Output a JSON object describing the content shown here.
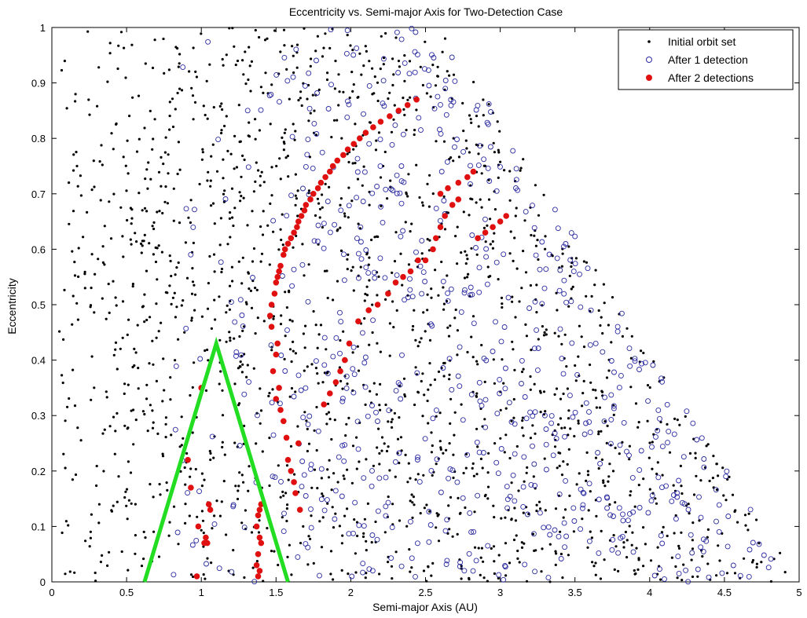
{
  "chart_data": {
    "type": "scatter",
    "title": "Eccentricity vs. Semi-major Axis for Two-Detection Case",
    "xlabel": "Semi-major Axis (AU)",
    "ylabel": "Eccentricity",
    "xlim": [
      0,
      5
    ],
    "ylim": [
      0,
      1
    ],
    "xticks": [
      "0",
      "0.5",
      "1",
      "1.5",
      "2",
      "2.5",
      "3",
      "3.5",
      "4",
      "4.5",
      "5"
    ],
    "yticks": [
      "0",
      "0.1",
      "0.2",
      "0.3",
      "0.4",
      "0.5",
      "0.6",
      "0.7",
      "0.8",
      "0.9",
      "1"
    ],
    "grid": false,
    "legend_position": "top-right",
    "colors": {
      "initial": "#000000",
      "after1": "#2a2aa0",
      "after2": "#e01010",
      "triangle": "#22dd22"
    },
    "series": [
      {
        "name": "Initial orbit set",
        "marker": "dot",
        "note": "dense random cloud of black dots below the boundary line e = 1 - (a - 2.6)/2.4 for a > 2.6",
        "count": 1900
      },
      {
        "name": "After 1 detection",
        "marker": "open-circle",
        "note": "blue open circles concentrated for a between 0.8 and 5",
        "count": 750
      },
      {
        "name": "After 2 detections",
        "marker": "filled-circle",
        "x": [
          0.97,
          1.0,
          0.91,
          0.93,
          0.98,
          1.02,
          1.05,
          1.06,
          1.04,
          1.03,
          1.38,
          1.39,
          1.37,
          1.38,
          1.4,
          1.39,
          1.37,
          1.38,
          1.39,
          1.4,
          1.5,
          1.52,
          1.48,
          1.53,
          1.55,
          1.57,
          1.5,
          1.51,
          1.47,
          1.46,
          1.47,
          1.49,
          1.5,
          1.51,
          1.52,
          1.53,
          1.55,
          1.56,
          1.58,
          1.6,
          1.62,
          1.64,
          1.65,
          1.67,
          1.69,
          1.7,
          1.73,
          1.75,
          1.78,
          1.8,
          1.83,
          1.86,
          1.88,
          1.91,
          1.95,
          1.98,
          2.02,
          2.06,
          2.1,
          2.15,
          2.2,
          2.26,
          2.32,
          2.38,
          2.44,
          1.82,
          1.86,
          1.9,
          1.93,
          1.96,
          1.99,
          2.05,
          2.12,
          2.18,
          2.25,
          2.3,
          2.35,
          2.4,
          2.45,
          2.6,
          2.65,
          2.72,
          2.78,
          2.82,
          2.85,
          2.9,
          2.95,
          3.0,
          3.04,
          2.5,
          2.55,
          2.57,
          2.6,
          2.63,
          2.68,
          2.72,
          1.58,
          1.6,
          1.62,
          1.63,
          1.65,
          1.66
        ],
        "y": [
          0.01,
          0.35,
          0.22,
          0.17,
          0.1,
          0.07,
          0.14,
          0.13,
          0.07,
          0.08,
          0.01,
          0.02,
          0.03,
          0.05,
          0.07,
          0.08,
          0.1,
          0.12,
          0.13,
          0.14,
          0.33,
          0.35,
          0.38,
          0.31,
          0.29,
          0.26,
          0.41,
          0.43,
          0.46,
          0.48,
          0.5,
          0.52,
          0.54,
          0.55,
          0.56,
          0.57,
          0.59,
          0.6,
          0.61,
          0.62,
          0.63,
          0.64,
          0.65,
          0.66,
          0.67,
          0.68,
          0.69,
          0.7,
          0.71,
          0.72,
          0.73,
          0.74,
          0.75,
          0.76,
          0.77,
          0.78,
          0.79,
          0.8,
          0.81,
          0.82,
          0.83,
          0.84,
          0.85,
          0.86,
          0.87,
          0.32,
          0.34,
          0.36,
          0.38,
          0.4,
          0.43,
          0.47,
          0.49,
          0.5,
          0.52,
          0.54,
          0.55,
          0.56,
          0.58,
          0.7,
          0.71,
          0.72,
          0.73,
          0.74,
          0.62,
          0.63,
          0.64,
          0.65,
          0.66,
          0.58,
          0.6,
          0.62,
          0.64,
          0.66,
          0.68,
          0.69,
          0.22,
          0.2,
          0.18,
          0.16,
          0.25,
          0.13
        ]
      }
    ],
    "annotations": [
      {
        "type": "polyline",
        "color": "#22dd22",
        "points_x": [
          0.62,
          1.1,
          1.58
        ],
        "points_y": [
          0,
          0.43,
          0
        ]
      }
    ]
  }
}
